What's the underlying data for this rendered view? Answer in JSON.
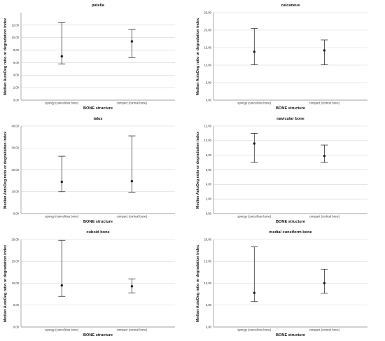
{
  "chart_data": [
    {
      "type": "errorbar",
      "title": "patella",
      "xlabel": "BONE structure",
      "ylabel": "Median AutoDeg ratio or degradation index",
      "categories": [
        "spongy (cancellous bone)",
        "compact (cortical bone)"
      ],
      "ylim": [
        0,
        14
      ],
      "yticks": [
        "0,00",
        "2,00",
        "4,00",
        "6,00",
        "8,00",
        "10,00",
        "12,00"
      ],
      "ytick_values": [
        0,
        2,
        4,
        6,
        8,
        10,
        12
      ],
      "points": [
        {
          "category": "spongy (cancellous bone)",
          "median": 7.0,
          "lower": 5.8,
          "upper": 12.4
        },
        {
          "category": "compact (cortical bone)",
          "median": 9.4,
          "lower": 6.8,
          "upper": 11.3
        }
      ]
    },
    {
      "type": "errorbar",
      "title": "calcaneus",
      "xlabel": "BONE structure",
      "ylabel": "Median AutoDeg ratio or degradation index",
      "categories": [
        "spongy (cancellous bone)",
        "compact (cortical bone)"
      ],
      "ylim": [
        0,
        25
      ],
      "yticks": [
        "0,00",
        "5,00",
        "10,00",
        "15,00",
        "20,00",
        "25,00"
      ],
      "ytick_values": [
        0,
        5,
        10,
        15,
        20,
        25
      ],
      "points": [
        {
          "category": "spongy (cancellous bone)",
          "median": 13.8,
          "lower": 10.1,
          "upper": 20.5
        },
        {
          "category": "compact (cortical bone)",
          "median": 14.2,
          "lower": 10.1,
          "upper": 17.2
        }
      ]
    },
    {
      "type": "errorbar",
      "title": "talus",
      "xlabel": "BONE structure",
      "ylabel": "Median AutoDeg ratio or degradation index",
      "categories": [
        "spongy (cancellous bone)",
        "compact (cortical bone)"
      ],
      "ylim": [
        0,
        40
      ],
      "yticks": [
        "0,00",
        "10,00",
        "20,00",
        "30,00",
        "40,00"
      ],
      "ytick_values": [
        0,
        10,
        20,
        30,
        40
      ],
      "points": [
        {
          "category": "spongy (cancellous bone)",
          "median": 14.5,
          "lower": 10.0,
          "upper": 26.2
        },
        {
          "category": "compact (cortical bone)",
          "median": 14.8,
          "lower": 9.8,
          "upper": 35.5
        }
      ]
    },
    {
      "type": "errorbar",
      "title": "navicular bone",
      "xlabel": "BONE structure",
      "ylabel": "Median AutoDeg ratio or degradation index",
      "categories": [
        "spongy (cancellous bone)",
        "compact (cortical bone)"
      ],
      "ylim": [
        0,
        12
      ],
      "yticks": [
        "0,00",
        "2,00",
        "4,00",
        "6,00",
        "8,00",
        "10,00",
        "12,00"
      ],
      "ytick_values": [
        0,
        2,
        4,
        6,
        8,
        10,
        12
      ],
      "points": [
        {
          "category": "spongy (cancellous bone)",
          "median": 9.6,
          "lower": 7.0,
          "upper": 11.0
        },
        {
          "category": "compact (cortical bone)",
          "median": 7.9,
          "lower": 7.0,
          "upper": 9.4
        }
      ]
    },
    {
      "type": "errorbar",
      "title": "cuboid bone",
      "xlabel": "BONE structure",
      "ylabel": "Median AutoDeg ratio or degradation index",
      "categories": [
        "spongy (cancellous bone)",
        "compact (cortical bone)"
      ],
      "ylim": [
        0,
        20
      ],
      "yticks": [
        "0,00",
        "5,00",
        "10,00",
        "15,00",
        "20,00"
      ],
      "ytick_values": [
        0,
        5,
        10,
        15,
        20
      ],
      "points": [
        {
          "category": "spongy (cancellous bone)",
          "median": 9.5,
          "lower": 7.0,
          "upper": 19.8
        },
        {
          "category": "compact (cortical bone)",
          "median": 9.3,
          "lower": 7.8,
          "upper": 11.0
        }
      ]
    },
    {
      "type": "errorbar",
      "title": "medial cuneiform bone",
      "xlabel": "BONE structure",
      "ylabel": "Median AutoDeg ratio or degradation index",
      "categories": [
        "spongy (cancellous bone)",
        "compact (cortical bone)"
      ],
      "ylim": [
        0,
        20
      ],
      "yticks": [
        "0,00",
        "5,00",
        "10,00",
        "15,00",
        "20,00"
      ],
      "ytick_values": [
        0,
        5,
        10,
        15,
        20
      ],
      "points": [
        {
          "category": "spongy (cancellous bone)",
          "median": 7.8,
          "lower": 5.8,
          "upper": 18.3
        },
        {
          "category": "compact (cortical bone)",
          "median": 10.0,
          "lower": 7.7,
          "upper": 13.2
        }
      ]
    }
  ],
  "colors": {
    "gridline": "#d4d4d4",
    "axis": "#888888",
    "marker": "#222222",
    "errorbar": "#333333"
  }
}
